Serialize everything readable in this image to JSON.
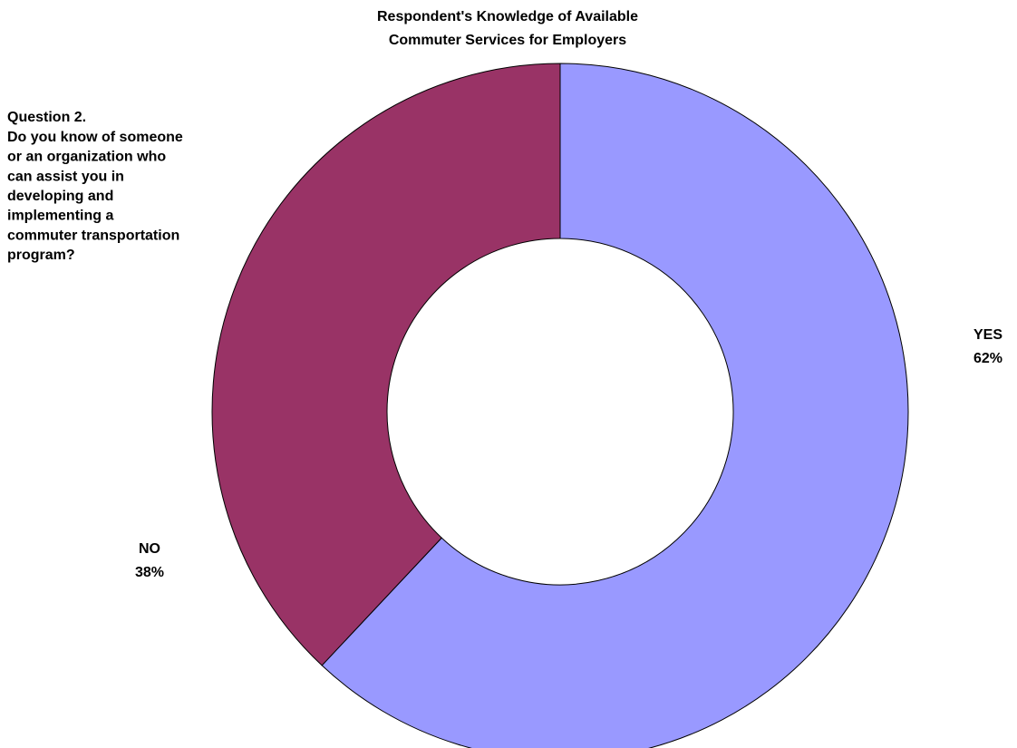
{
  "chart_data": {
    "type": "donut",
    "title": [
      "Respondent's Knowledge of Available",
      "Commuter Services for Employers"
    ],
    "annotation": [
      "Question 2.",
      "Do you know of someone",
      "or an organization who",
      "can assist you in",
      "developing and",
      "implementing a",
      "commuter transportation",
      "program?"
    ],
    "categories": [
      "YES",
      "NO"
    ],
    "values": [
      62,
      38
    ],
    "value_labels": [
      "62%",
      "38%"
    ],
    "colors": [
      "#9999ff",
      "#993366"
    ]
  }
}
